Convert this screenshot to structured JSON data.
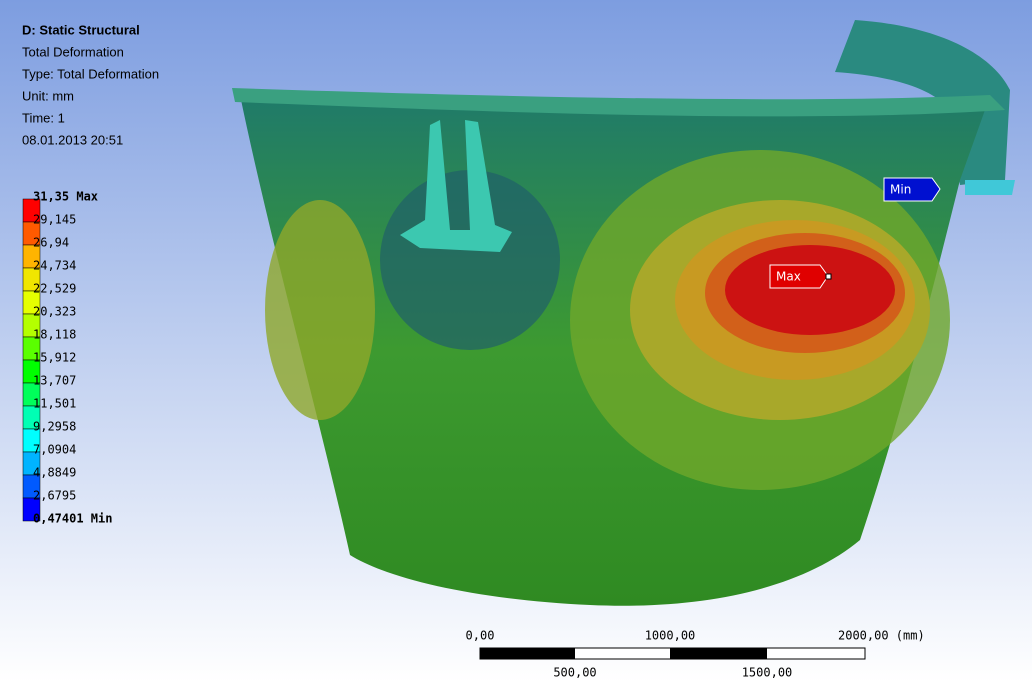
{
  "header": {
    "title": "D: Static Structural",
    "lines": [
      "Total Deformation",
      "Type: Total Deformation",
      "Unit: mm",
      "Time: 1",
      "08.01.2013 20:51"
    ]
  },
  "legend": {
    "labels": [
      "31,35 Max",
      "29,145",
      "26,94",
      "24,734",
      "22,529",
      "20,323",
      "18,118",
      "15,912",
      "13,707",
      "11,501",
      "9,2958",
      "7,0904",
      "4,8849",
      "2,6795",
      "0,47401 Min"
    ],
    "colors": [
      "#ff0000",
      "#ff5a00",
      "#ffb400",
      "#f0e600",
      "#e6ff00",
      "#b4ff00",
      "#5aff00",
      "#00ff00",
      "#00ff5a",
      "#00ffb4",
      "#00ffff",
      "#00b4ff",
      "#005aff",
      "#0000ff"
    ]
  },
  "scale_bar": {
    "top_labels": [
      "0,00",
      "1000,00",
      "2000,00 (mm)"
    ],
    "bottom_labels": [
      "500,00",
      "1500,00"
    ]
  },
  "probes": {
    "max": "Max",
    "min": "Min"
  }
}
